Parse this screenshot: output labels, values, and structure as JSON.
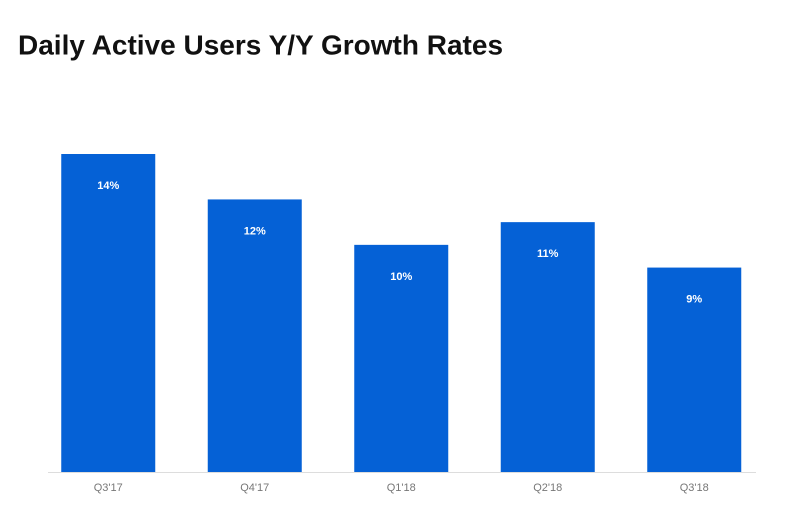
{
  "chart_data": {
    "type": "bar",
    "title": "Daily Active Users Y/Y Growth Rates",
    "categories": [
      "Q3'17",
      "Q4'17",
      "Q1'18",
      "Q2'18",
      "Q3'18"
    ],
    "values": [
      14,
      12,
      10,
      11,
      9
    ],
    "value_labels": [
      "14%",
      "12%",
      "10%",
      "11%",
      "9%"
    ],
    "color": "#0561d6"
  }
}
